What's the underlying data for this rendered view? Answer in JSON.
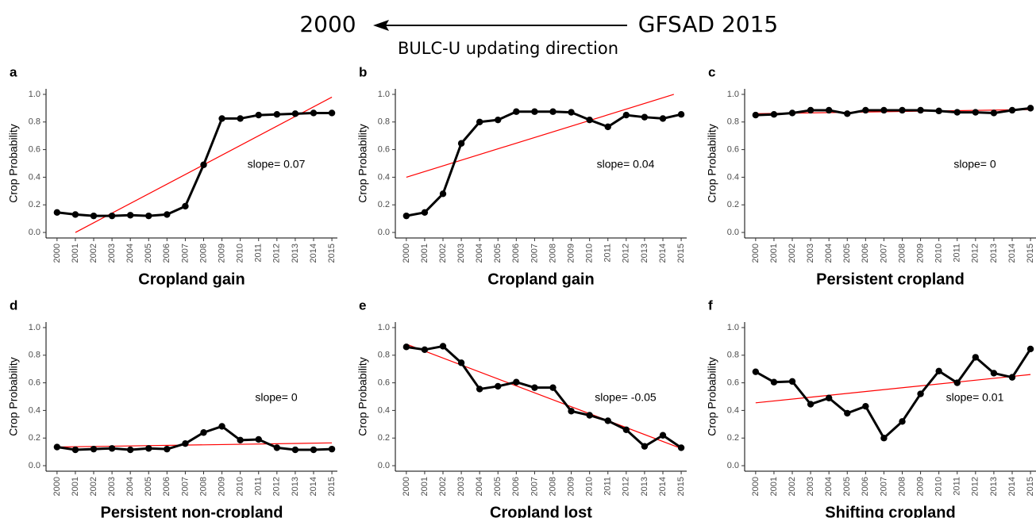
{
  "header": {
    "left": "2000",
    "right": "GFSAD 2015",
    "caption": "BULC-U updating direction"
  },
  "chart_data": [
    {
      "type": "line",
      "panel": "a",
      "xlabel": "Cropland gain",
      "ylabel": "Crop Probability",
      "annotation": "slope= 0.07",
      "x": [
        2000,
        2001,
        2002,
        2003,
        2004,
        2005,
        2006,
        2007,
        2008,
        2009,
        2010,
        2011,
        2012,
        2013,
        2014,
        2015
      ],
      "xlim": [
        1999.4,
        2015.3
      ],
      "xticks": [
        2000,
        2001,
        2002,
        2003,
        2004,
        2005,
        2006,
        2007,
        2008,
        2009,
        2010,
        2011,
        2012,
        2013,
        2014,
        2015
      ],
      "ylim": [
        -0.04,
        1.04
      ],
      "yticks": [
        {
          "value": 0,
          "label": "0.0"
        },
        0.2,
        0.4,
        0.6,
        0.8,
        {
          "value": 1,
          "label": "1.0"
        }
      ],
      "series": [
        {
          "color": "#000000",
          "values": [
            0.145,
            0.13,
            0.12,
            0.12,
            0.125,
            0.12,
            0.13,
            0.19,
            0.49,
            0.825,
            0.825,
            0.85,
            0.855,
            0.86,
            0.865,
            0.865
          ]
        }
      ],
      "trend": {
        "color": "#ff0000",
        "x": [
          2001,
          2015
        ],
        "values": [
          0.0,
          0.98
        ]
      }
    },
    {
      "type": "line",
      "panel": "b",
      "xlabel": "Cropland gain",
      "ylabel": "Crop Probability",
      "annotation": "slope= 0.04",
      "x": [
        2000,
        2001,
        2002,
        2003,
        2004,
        2005,
        2006,
        2007,
        2008,
        2009,
        2010,
        2011,
        2012,
        2013,
        2014,
        2015
      ],
      "xlim": [
        1999.4,
        2015.3
      ],
      "xticks": [
        2000,
        2001,
        2002,
        2003,
        2004,
        2005,
        2006,
        2007,
        2008,
        2009,
        2010,
        2011,
        2012,
        2013,
        2014,
        2015
      ],
      "ylim": [
        -0.04,
        1.04
      ],
      "yticks": [
        {
          "value": 0,
          "label": "0.0"
        },
        0.2,
        0.4,
        0.6,
        0.8,
        {
          "value": 1,
          "label": "1.0"
        }
      ],
      "series": [
        {
          "color": "#000000",
          "values": [
            0.12,
            0.145,
            0.28,
            0.645,
            0.8,
            0.815,
            0.875,
            0.875,
            0.875,
            0.87,
            0.815,
            0.765,
            0.85,
            0.835,
            0.825,
            0.855
          ]
        }
      ],
      "trend": {
        "color": "#ff0000",
        "x": [
          2000,
          2014.6
        ],
        "values": [
          0.4,
          1.0
        ]
      }
    },
    {
      "type": "line",
      "panel": "c",
      "xlabel": "Persistent cropland",
      "ylabel": "Crop Probability",
      "annotation": "slope= 0",
      "x": [
        2000,
        2001,
        2002,
        2003,
        2004,
        2005,
        2006,
        2007,
        2008,
        2009,
        2010,
        2011,
        2012,
        2013,
        2014,
        2015
      ],
      "xlim": [
        1999.4,
        2015.3
      ],
      "xticks": [
        2000,
        2001,
        2002,
        2003,
        2004,
        2005,
        2006,
        2007,
        2008,
        2009,
        2010,
        2011,
        2012,
        2013,
        2014,
        2015
      ],
      "ylim": [
        -0.04,
        1.04
      ],
      "yticks": [
        {
          "value": 0,
          "label": "0.0"
        },
        0.2,
        0.4,
        0.6,
        0.8,
        {
          "value": 1,
          "label": "1.0"
        }
      ],
      "series": [
        {
          "color": "#000000",
          "values": [
            0.85,
            0.855,
            0.865,
            0.885,
            0.885,
            0.86,
            0.885,
            0.885,
            0.885,
            0.885,
            0.88,
            0.87,
            0.87,
            0.865,
            0.885,
            0.9
          ]
        }
      ],
      "trend": {
        "color": "#ff0000",
        "x": [
          2000,
          2015
        ],
        "values": [
          0.86,
          0.89
        ]
      }
    },
    {
      "type": "line",
      "panel": "d",
      "xlabel": "Persistent non-cropland",
      "ylabel": "Crop Probability",
      "annotation": "slope= 0",
      "x": [
        2000,
        2001,
        2002,
        2003,
        2004,
        2005,
        2006,
        2007,
        2008,
        2009,
        2010,
        2011,
        2012,
        2013,
        2014,
        2015
      ],
      "xlim": [
        1999.4,
        2015.3
      ],
      "xticks": [
        2000,
        2001,
        2002,
        2003,
        2004,
        2005,
        2006,
        2007,
        2008,
        2009,
        2010,
        2011,
        2012,
        2013,
        2014,
        2015
      ],
      "ylim": [
        -0.04,
        1.04
      ],
      "yticks": [
        {
          "value": 0,
          "label": "0.0"
        },
        0.2,
        0.4,
        0.6,
        0.8,
        {
          "value": 1,
          "label": "1.0"
        }
      ],
      "series": [
        {
          "color": "#000000",
          "values": [
            0.135,
            0.115,
            0.12,
            0.125,
            0.115,
            0.125,
            0.12,
            0.16,
            0.24,
            0.285,
            0.185,
            0.19,
            0.13,
            0.115,
            0.115,
            0.12
          ]
        }
      ],
      "trend": {
        "color": "#ff0000",
        "x": [
          2000,
          2015
        ],
        "values": [
          0.135,
          0.165
        ]
      }
    },
    {
      "type": "line",
      "panel": "e",
      "xlabel": "Cropland lost",
      "ylabel": "Crop Probability",
      "annotation": "slope= -0.05",
      "x": [
        2000,
        2001,
        2002,
        2003,
        2004,
        2005,
        2006,
        2007,
        2008,
        2009,
        2010,
        2011,
        2012,
        2013,
        2014,
        2015
      ],
      "xlim": [
        1999.4,
        2015.3
      ],
      "xticks": [
        2000,
        2001,
        2002,
        2003,
        2004,
        2005,
        2006,
        2007,
        2008,
        2009,
        2010,
        2011,
        2012,
        2013,
        2014,
        2015
      ],
      "ylim": [
        -0.04,
        1.04
      ],
      "yticks": [
        {
          "value": 0,
          "label": "0.0"
        },
        0.2,
        0.4,
        0.6,
        0.8,
        {
          "value": 1,
          "label": "1.0"
        }
      ],
      "series": [
        {
          "color": "#000000",
          "values": [
            0.86,
            0.84,
            0.865,
            0.745,
            0.555,
            0.575,
            0.605,
            0.565,
            0.565,
            0.395,
            0.365,
            0.325,
            0.26,
            0.14,
            0.22,
            0.13
          ]
        }
      ],
      "trend": {
        "color": "#ff0000",
        "x": [
          2000,
          2015
        ],
        "values": [
          0.88,
          0.125
        ]
      }
    },
    {
      "type": "line",
      "panel": "f",
      "xlabel": "Shifting cropland",
      "ylabel": "Crop Probability",
      "annotation": "slope= 0.01",
      "x": [
        2000,
        2001,
        2002,
        2003,
        2004,
        2005,
        2006,
        2007,
        2008,
        2009,
        2010,
        2011,
        2012,
        2013,
        2014,
        2015
      ],
      "xlim": [
        1999.4,
        2015.3
      ],
      "xticks": [
        2000,
        2001,
        2002,
        2003,
        2004,
        2005,
        2006,
        2007,
        2008,
        2009,
        2010,
        2011,
        2012,
        2013,
        2014,
        2015
      ],
      "ylim": [
        -0.04,
        1.04
      ],
      "yticks": [
        {
          "value": 0,
          "label": "0.0"
        },
        0.2,
        0.4,
        0.6,
        0.8,
        {
          "value": 1,
          "label": "1.0"
        }
      ],
      "series": [
        {
          "color": "#000000",
          "values": [
            0.68,
            0.605,
            0.61,
            0.445,
            0.49,
            0.38,
            0.43,
            0.2,
            0.32,
            0.52,
            0.685,
            0.6,
            0.785,
            0.67,
            0.64,
            0.845
          ]
        }
      ],
      "trend": {
        "color": "#ff0000",
        "x": [
          2000,
          2015
        ],
        "values": [
          0.455,
          0.66
        ]
      }
    }
  ]
}
